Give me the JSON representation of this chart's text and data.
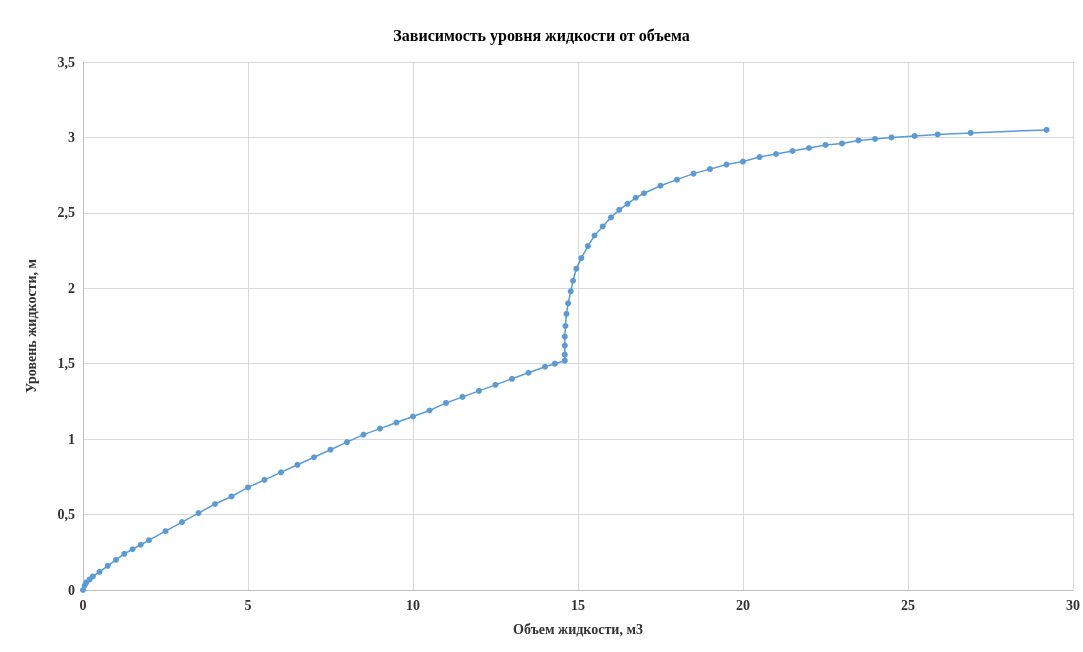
{
  "chart_data": {
    "type": "line",
    "title": "Зависимость уровня жидкости от объема",
    "xlabel": "Объем жидкости, м3",
    "ylabel": "Уровень жидкости, м",
    "series": [
      {
        "color": "#5b9bd5",
        "x": [
          0,
          0.05,
          0.1,
          0.2,
          0.3,
          0.5,
          0.75,
          1,
          1.25,
          1.5,
          1.75,
          2,
          2.5,
          3,
          3.5,
          4,
          4.5,
          5,
          5.5,
          6,
          6.5,
          7,
          7.5,
          8,
          8.5,
          9,
          9.5,
          10,
          10.5,
          11,
          11.5,
          12,
          12.5,
          13,
          13.5,
          14,
          14.3,
          14.6,
          14.6,
          14.6,
          14.6,
          14.62,
          14.65,
          14.7,
          14.78,
          14.85,
          14.95,
          15.1,
          15.3,
          15.5,
          15.75,
          16,
          16.25,
          16.5,
          16.75,
          17,
          17.5,
          18,
          18.5,
          19,
          19.5,
          20,
          20.5,
          21,
          21.5,
          22,
          22.5,
          23,
          23.5,
          24,
          24.5,
          25.2,
          25.9,
          26.9,
          29.2
        ],
        "values": [
          0,
          0.03,
          0.05,
          0.07,
          0.09,
          0.12,
          0.16,
          0.2,
          0.24,
          0.27,
          0.3,
          0.33,
          0.39,
          0.45,
          0.51,
          0.57,
          0.62,
          0.68,
          0.73,
          0.78,
          0.83,
          0.88,
          0.93,
          0.98,
          1.03,
          1.07,
          1.11,
          1.15,
          1.19,
          1.24,
          1.28,
          1.32,
          1.36,
          1.4,
          1.44,
          1.48,
          1.5,
          1.52,
          1.56,
          1.62,
          1.68,
          1.75,
          1.83,
          1.9,
          1.98,
          2.05,
          2.13,
          2.2,
          2.28,
          2.35,
          2.41,
          2.47,
          2.52,
          2.56,
          2.6,
          2.63,
          2.68,
          2.72,
          2.76,
          2.79,
          2.82,
          2.84,
          2.87,
          2.89,
          2.91,
          2.93,
          2.95,
          2.96,
          2.98,
          2.99,
          3,
          3.01,
          3.02,
          3.03,
          3.05
        ]
      }
    ],
    "xlim": [
      0,
      30
    ],
    "xticks": [
      0,
      5,
      10,
      15,
      20,
      25,
      30
    ],
    "ylim": [
      0,
      3.5
    ],
    "yticks": [
      {
        "value": 0,
        "label": "0"
      },
      {
        "value": 0.5,
        "label": "0,5"
      },
      {
        "value": 1,
        "label": "1"
      },
      {
        "value": 1.5,
        "label": "1,5"
      },
      {
        "value": 2,
        "label": "2"
      },
      {
        "value": 2.5,
        "label": "2,5"
      },
      {
        "value": 3,
        "label": "3"
      },
      {
        "value": 3.5,
        "label": "3,5"
      }
    ],
    "grid": true,
    "marker": "circle",
    "line_style": "solid"
  }
}
